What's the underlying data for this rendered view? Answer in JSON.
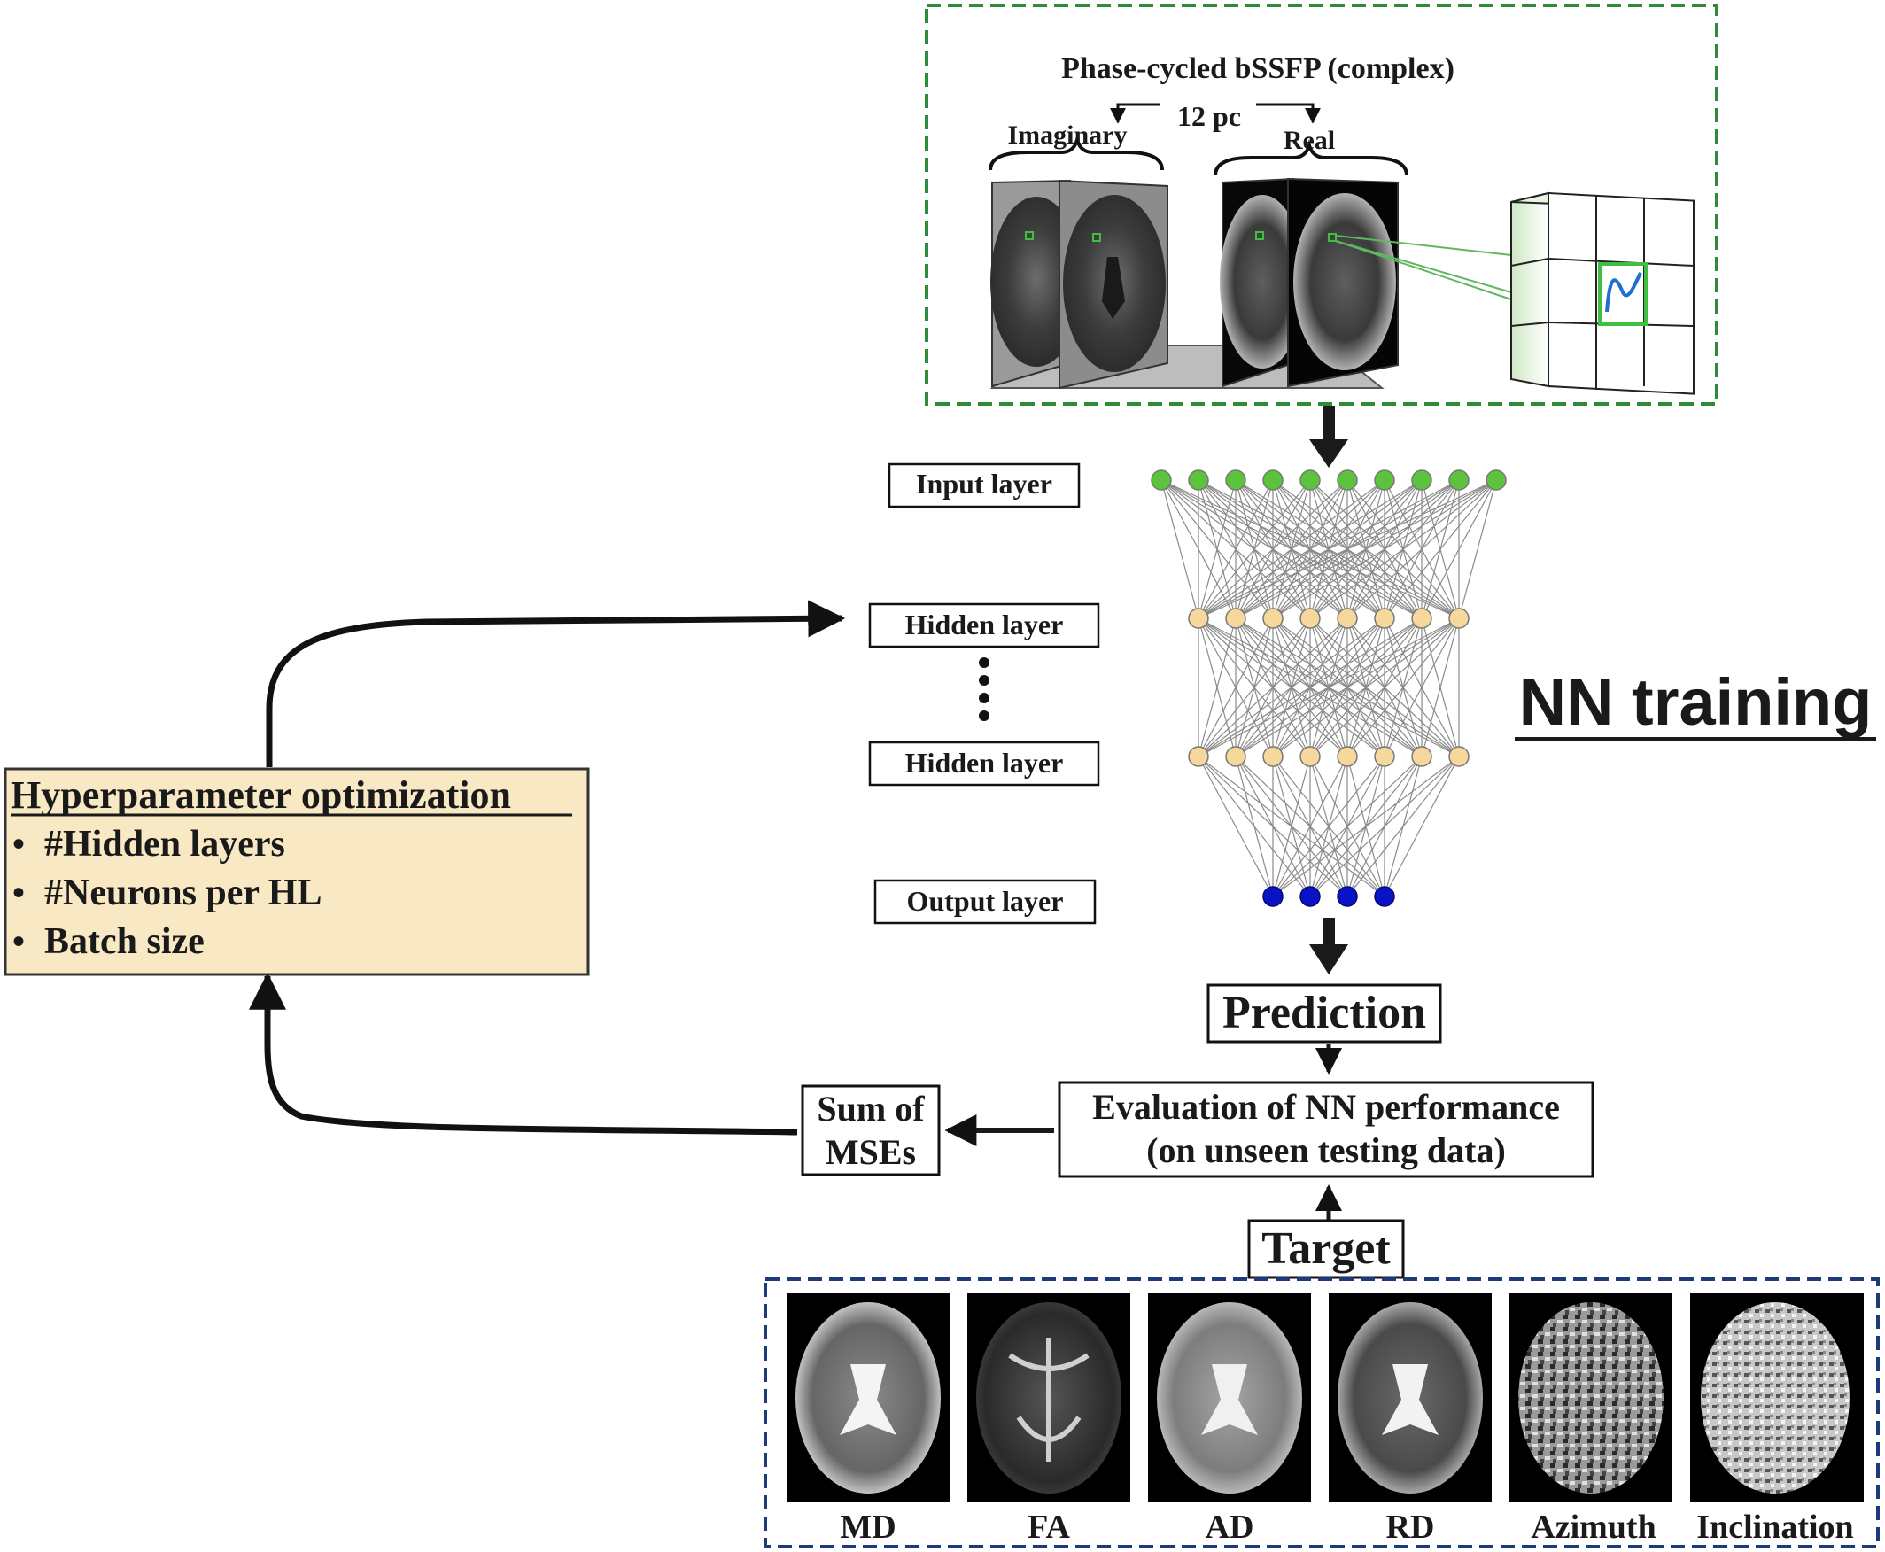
{
  "input_panel": {
    "title": "Phase-cycled bSSFP (complex)",
    "pc_label": "12 pc",
    "imaginary_label": "Imaginary",
    "real_label": "Real"
  },
  "layers": {
    "input": "Input layer",
    "hidden_1": "Hidden layer",
    "hidden_2": "Hidden layer",
    "output": "Output layer"
  },
  "title": "NN training",
  "prediction": "Prediction",
  "evaluation": {
    "line1": "Evaluation of NN performance",
    "line2": "(on unseen testing data)"
  },
  "mse": {
    "line1": "Sum of",
    "line2": "MSEs"
  },
  "target": "Target",
  "hyperparameters": {
    "title": "Hyperparameter optimization",
    "items": [
      "#Hidden layers",
      "#Neurons per HL",
      "Batch size"
    ]
  },
  "target_maps": [
    "MD",
    "FA",
    "AD",
    "RD",
    "Azimuth",
    "Inclination"
  ],
  "network": {
    "input_neurons": 10,
    "hidden_neurons": 8,
    "output_neurons": 4
  },
  "colors": {
    "input_neuron": "#5cc43c",
    "hidden_neuron": "#f6d79c",
    "output_neuron": "#0a12c8",
    "hyper_box": "#f8e8c4",
    "panel_green": "#2e8b3a",
    "panel_navy": "#1f3a7a"
  }
}
